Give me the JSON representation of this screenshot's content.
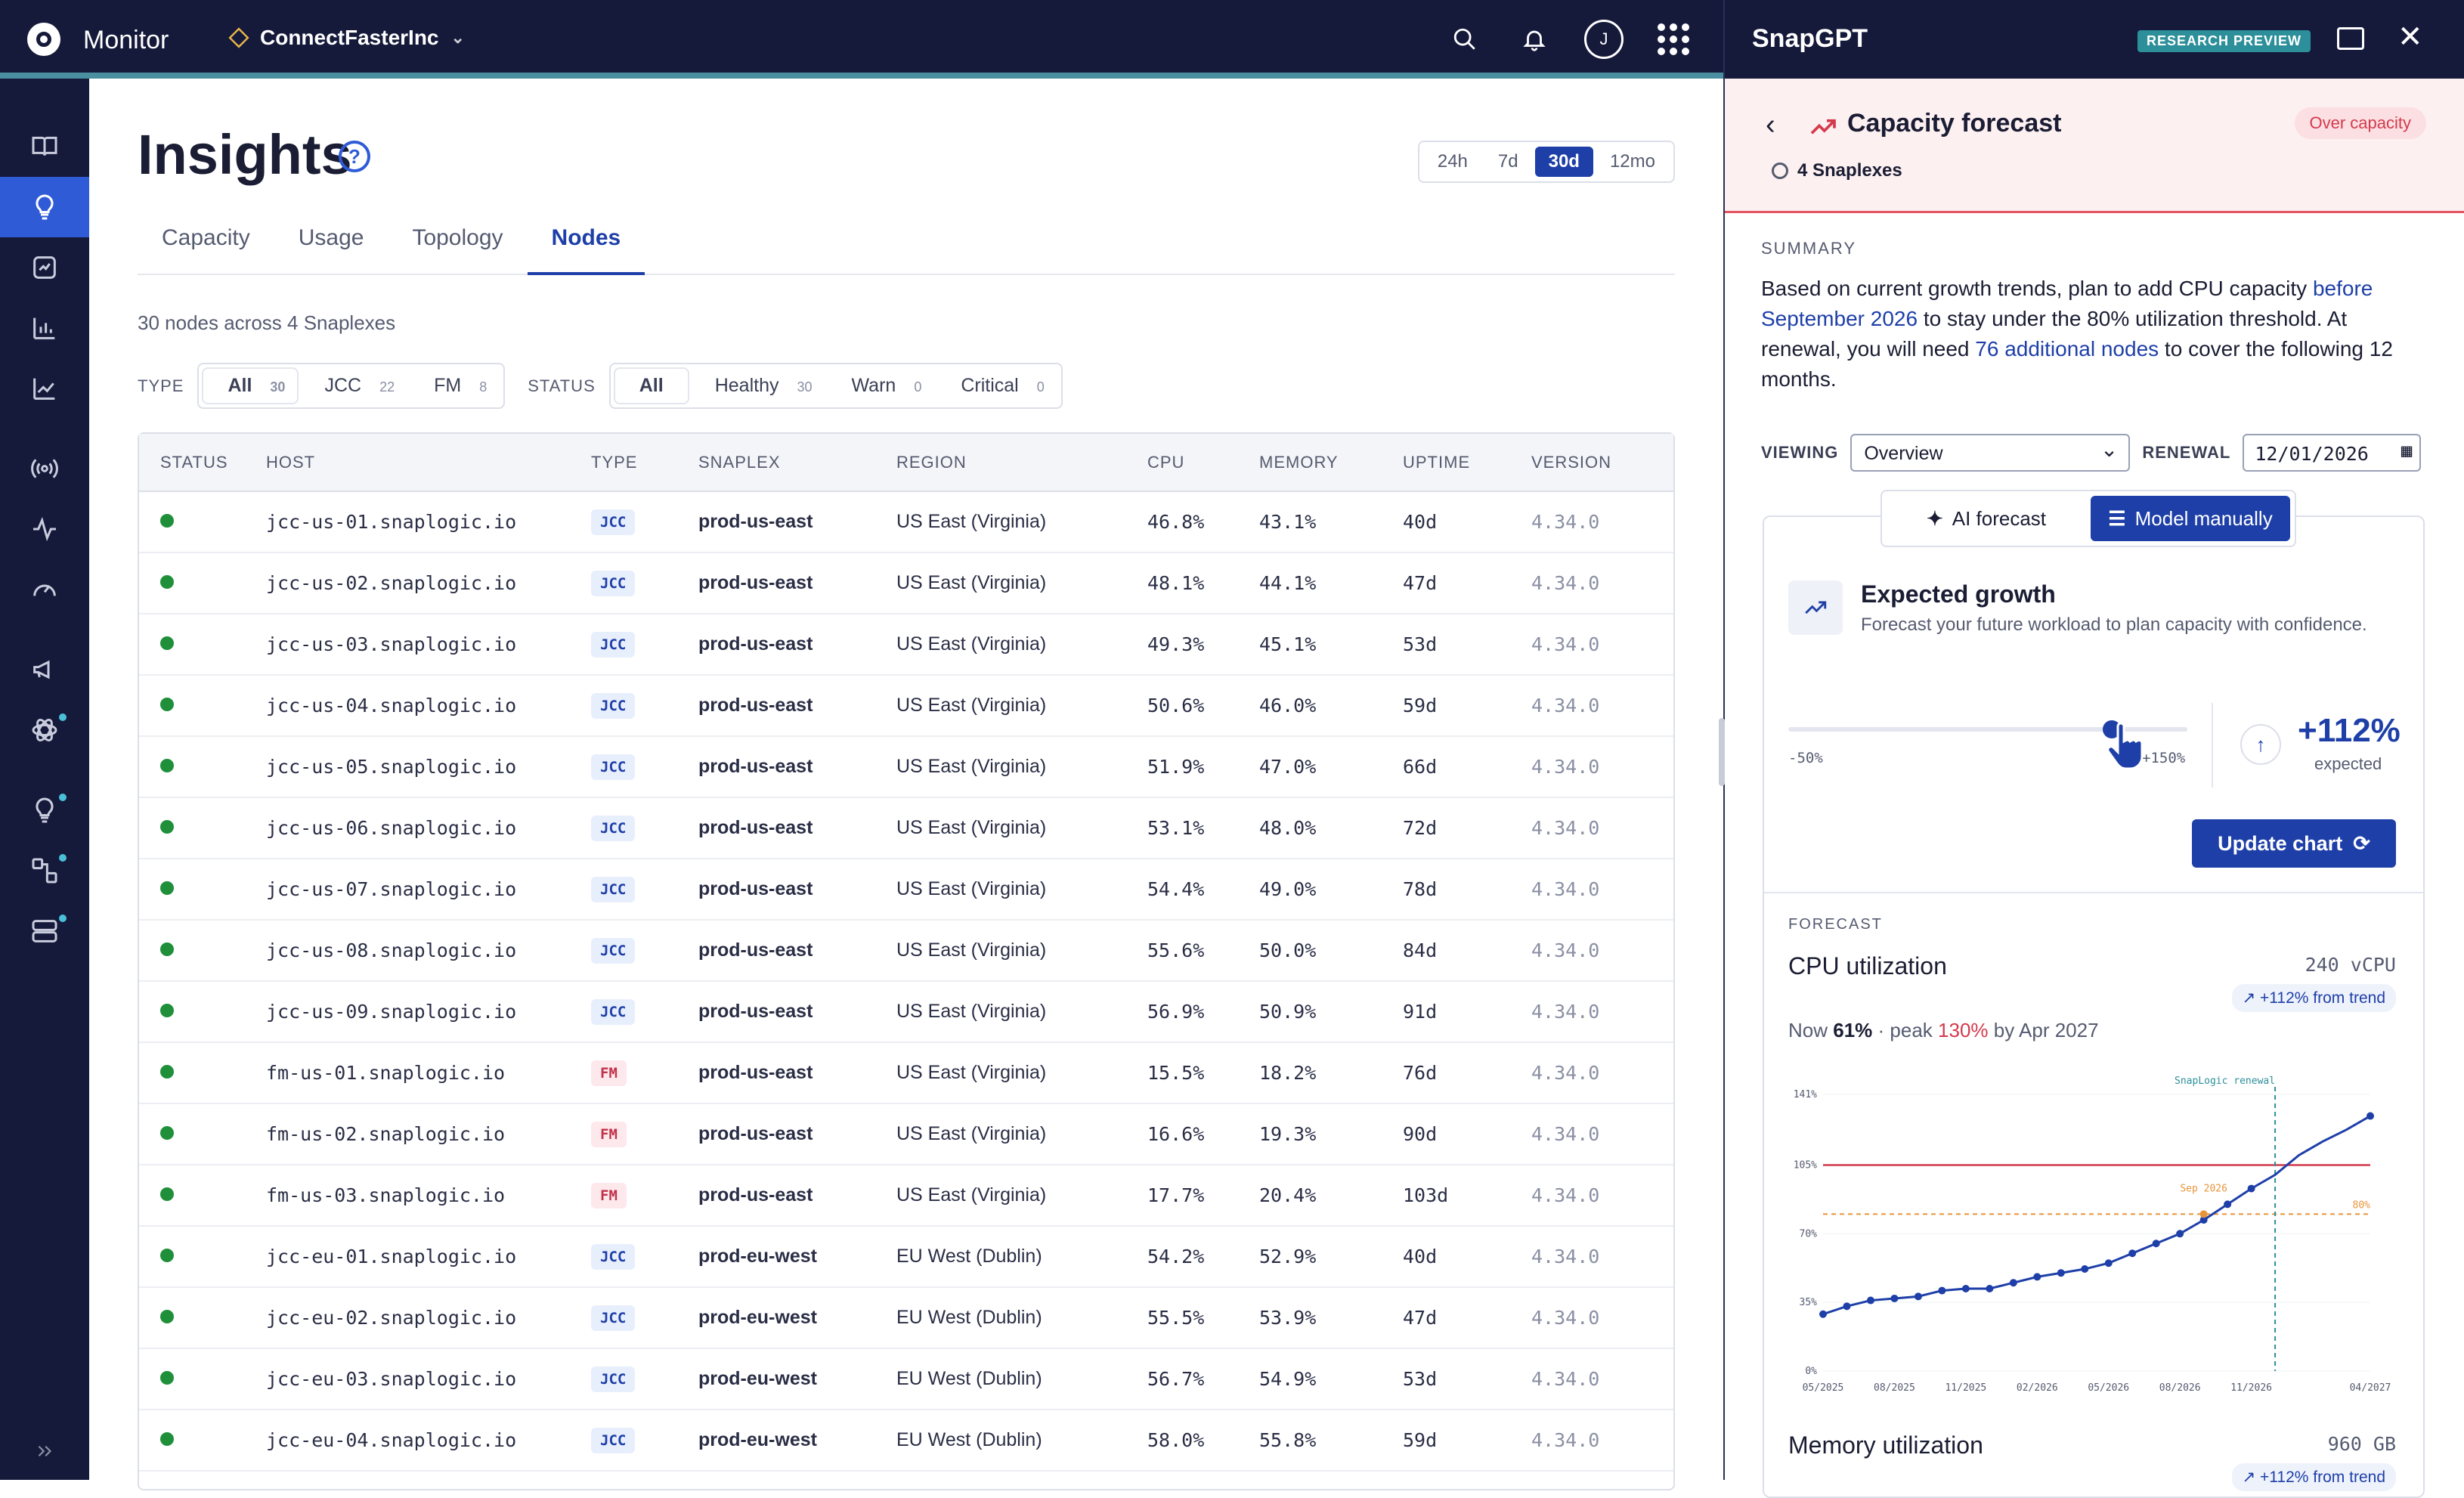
{
  "app": {
    "title": "Monitor",
    "org": "ConnectFasterInc",
    "avatar": "J"
  },
  "page": {
    "title": "Insights",
    "ranges": [
      "24h",
      "7d",
      "30d",
      "12mo"
    ],
    "active_range": "30d",
    "tabs": [
      "Capacity",
      "Usage",
      "Topology",
      "Nodes"
    ],
    "active_tab": "Nodes",
    "subtitle": "30 nodes across 4 Snaplexes",
    "type_label": "TYPE",
    "type_filters": [
      {
        "label": "All",
        "count": "30"
      },
      {
        "label": "JCC",
        "count": "22"
      },
      {
        "label": "FM",
        "count": "8"
      }
    ],
    "status_label": "STATUS",
    "status_filters": [
      {
        "label": "All",
        "count": ""
      },
      {
        "label": "Healthy",
        "count": "30"
      },
      {
        "label": "Warn",
        "count": "0"
      },
      {
        "label": "Critical",
        "count": "0"
      }
    ]
  },
  "table": {
    "headers": [
      "STATUS",
      "HOST",
      "TYPE",
      "SNAPLEX",
      "REGION",
      "CPU",
      "MEMORY",
      "UPTIME",
      "VERSION"
    ],
    "rows": [
      {
        "host": "jcc-us-01.snaplogic.io",
        "type": "JCC",
        "snaplex": "prod-us-east",
        "region": "US East (Virginia)",
        "cpu": "46.8%",
        "mem": "43.1%",
        "uptime": "40d",
        "ver": "4.34.0"
      },
      {
        "host": "jcc-us-02.snaplogic.io",
        "type": "JCC",
        "snaplex": "prod-us-east",
        "region": "US East (Virginia)",
        "cpu": "48.1%",
        "mem": "44.1%",
        "uptime": "47d",
        "ver": "4.34.0"
      },
      {
        "host": "jcc-us-03.snaplogic.io",
        "type": "JCC",
        "snaplex": "prod-us-east",
        "region": "US East (Virginia)",
        "cpu": "49.3%",
        "mem": "45.1%",
        "uptime": "53d",
        "ver": "4.34.0"
      },
      {
        "host": "jcc-us-04.snaplogic.io",
        "type": "JCC",
        "snaplex": "prod-us-east",
        "region": "US East (Virginia)",
        "cpu": "50.6%",
        "mem": "46.0%",
        "uptime": "59d",
        "ver": "4.34.0"
      },
      {
        "host": "jcc-us-05.snaplogic.io",
        "type": "JCC",
        "snaplex": "prod-us-east",
        "region": "US East (Virginia)",
        "cpu": "51.9%",
        "mem": "47.0%",
        "uptime": "66d",
        "ver": "4.34.0"
      },
      {
        "host": "jcc-us-06.snaplogic.io",
        "type": "JCC",
        "snaplex": "prod-us-east",
        "region": "US East (Virginia)",
        "cpu": "53.1%",
        "mem": "48.0%",
        "uptime": "72d",
        "ver": "4.34.0"
      },
      {
        "host": "jcc-us-07.snaplogic.io",
        "type": "JCC",
        "snaplex": "prod-us-east",
        "region": "US East (Virginia)",
        "cpu": "54.4%",
        "mem": "49.0%",
        "uptime": "78d",
        "ver": "4.34.0"
      },
      {
        "host": "jcc-us-08.snaplogic.io",
        "type": "JCC",
        "snaplex": "prod-us-east",
        "region": "US East (Virginia)",
        "cpu": "55.6%",
        "mem": "50.0%",
        "uptime": "84d",
        "ver": "4.34.0"
      },
      {
        "host": "jcc-us-09.snaplogic.io",
        "type": "JCC",
        "snaplex": "prod-us-east",
        "region": "US East (Virginia)",
        "cpu": "56.9%",
        "mem": "50.9%",
        "uptime": "91d",
        "ver": "4.34.0"
      },
      {
        "host": "fm-us-01.snaplogic.io",
        "type": "FM",
        "snaplex": "prod-us-east",
        "region": "US East (Virginia)",
        "cpu": "15.5%",
        "mem": "18.2%",
        "uptime": "76d",
        "ver": "4.34.0"
      },
      {
        "host": "fm-us-02.snaplogic.io",
        "type": "FM",
        "snaplex": "prod-us-east",
        "region": "US East (Virginia)",
        "cpu": "16.6%",
        "mem": "19.3%",
        "uptime": "90d",
        "ver": "4.34.0"
      },
      {
        "host": "fm-us-03.snaplogic.io",
        "type": "FM",
        "snaplex": "prod-us-east",
        "region": "US East (Virginia)",
        "cpu": "17.7%",
        "mem": "20.4%",
        "uptime": "103d",
        "ver": "4.34.0"
      },
      {
        "host": "jcc-eu-01.snaplogic.io",
        "type": "JCC",
        "snaplex": "prod-eu-west",
        "region": "EU West (Dublin)",
        "cpu": "54.2%",
        "mem": "52.9%",
        "uptime": "40d",
        "ver": "4.34.0"
      },
      {
        "host": "jcc-eu-02.snaplogic.io",
        "type": "JCC",
        "snaplex": "prod-eu-west",
        "region": "EU West (Dublin)",
        "cpu": "55.5%",
        "mem": "53.9%",
        "uptime": "47d",
        "ver": "4.34.0"
      },
      {
        "host": "jcc-eu-03.snaplogic.io",
        "type": "JCC",
        "snaplex": "prod-eu-west",
        "region": "EU West (Dublin)",
        "cpu": "56.7%",
        "mem": "54.9%",
        "uptime": "53d",
        "ver": "4.34.0"
      },
      {
        "host": "jcc-eu-04.snaplogic.io",
        "type": "JCC",
        "snaplex": "prod-eu-west",
        "region": "EU West (Dublin)",
        "cpu": "58.0%",
        "mem": "55.8%",
        "uptime": "59d",
        "ver": "4.34.0"
      }
    ]
  },
  "panel": {
    "title": "SnapGPT",
    "badge": "RESEARCH PREVIEW",
    "heading": "Capacity forecast",
    "status": "Over capacity",
    "scope": "4 Snaplexes",
    "summary_label": "SUMMARY",
    "summary": {
      "p1": "Based on current growth trends, plan to add CPU capacity ",
      "h1": "before September 2026",
      "p2": " to stay under the 80% utilization threshold. At renewal, you will need ",
      "h2": "76 additional nodes",
      "p3": " to cover the following 12 months."
    },
    "viewing_label": "VIEWING",
    "viewing_value": "Overview",
    "renewal_label": "RENEWAL",
    "renewal_value": "12/01/2026",
    "mode_ai": "AI forecast",
    "mode_manual": "Model manually",
    "growth_title": "Expected growth",
    "growth_sub": "Forecast your future workload to plan capacity with confidence.",
    "slider_min": "-50%",
    "slider_max": "+150%",
    "slider_value_pct": 112,
    "slider_range": [
      -50,
      150
    ],
    "growth_value": "+112%",
    "growth_caption": "expected",
    "update_label": "Update chart",
    "forecast_label": "FORECAST",
    "cpu_title": "CPU utilization",
    "cpu_capacity": "240 vCPU",
    "from_trend": "+112% from trend",
    "now_prefix": "Now",
    "now_val": "61%",
    "peak_prefix": "· peak",
    "peak_val": "130%",
    "peak_suffix": "by Apr 2027",
    "mem_title": "Memory utilization",
    "mem_capacity": "960 GB",
    "mem_trend": "+112% from trend"
  },
  "chart_data": {
    "type": "line",
    "x": [
      "05/2025",
      "06/2025",
      "07/2025",
      "08/2025",
      "09/2025",
      "10/2025",
      "11/2025",
      "12/2025",
      "01/2026",
      "02/2026",
      "03/2026",
      "04/2026",
      "05/2026",
      "06/2026",
      "07/2026",
      "08/2026",
      "09/2026",
      "10/2026",
      "11/2026",
      "12/2026",
      "01/2027",
      "02/2027",
      "03/2027",
      "04/2027"
    ],
    "series": [
      {
        "values": [
          29,
          33,
          36,
          37,
          38,
          41,
          42,
          42,
          45,
          48,
          50,
          52,
          55,
          60,
          65,
          70,
          77,
          85,
          93,
          100,
          110,
          117,
          123,
          130
        ]
      }
    ],
    "x_ticks": [
      "05/2025",
      "08/2025",
      "11/2025",
      "02/2026",
      "05/2026",
      "08/2026",
      "11/2026",
      "04/2027"
    ],
    "y_ticks": [
      "0%",
      "35%",
      "70%",
      "105%",
      "141%"
    ],
    "ylim": [
      0,
      141
    ],
    "capacity_line": 105,
    "threshold_line": 80,
    "threshold_label": "80%",
    "marker_label": "Sep 2026",
    "renewal_label": "SnapLogic renewal",
    "renewal_x": "12/2026",
    "colors": {
      "series": "#1e3fa8",
      "capacity": "#d43a4c",
      "threshold": "#e8953a",
      "renewal": "#2d8f9a"
    }
  }
}
